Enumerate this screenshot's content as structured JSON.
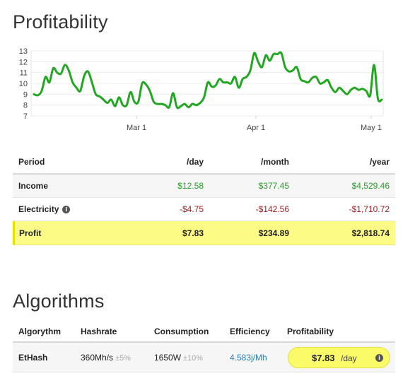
{
  "profitability_title": "Profitability",
  "algorithms_title": "Algorithms",
  "chart_data": {
    "type": "line",
    "x_ticks": [
      "Mar 1",
      "Apr 1",
      "May 1"
    ],
    "y_ticks": [
      7,
      8,
      9,
      10,
      11,
      12,
      13
    ],
    "ylim": [
      7,
      13
    ],
    "color": "#22a722",
    "series": [
      {
        "values": [
          9.0,
          8.9,
          9.3,
          10.6,
          10.1,
          11.4,
          11.0,
          10.9,
          11.7,
          11.2,
          10.1,
          9.6,
          9.3,
          10.7,
          11.1,
          10.1,
          9.0,
          8.8,
          8.5,
          8.2,
          8.5,
          7.9,
          8.7,
          8.0,
          8.0,
          9.2,
          8.3,
          8.3,
          10.0,
          9.9,
          9.3,
          8.3,
          8.1,
          8.1,
          8.0,
          7.8,
          9.1,
          7.8,
          7.9,
          8.1,
          7.8,
          8.1,
          8.0,
          8.2,
          8.7,
          10.1,
          9.7,
          9.8,
          10.4,
          10.1,
          10.1,
          10.0,
          10.6,
          9.6,
          10.4,
          10.6,
          11.2,
          12.8,
          12.0,
          11.5,
          12.6,
          12.1,
          12.7,
          12.7,
          12.8,
          11.5,
          11.1,
          11.2,
          11.5,
          10.4,
          10.2,
          10.1,
          10.5,
          10.6,
          10.0,
          10.1,
          10.3,
          9.6,
          9.2,
          9.6,
          9.3,
          9.0,
          9.4,
          9.6,
          9.4,
          9.5,
          9.3,
          8.9,
          11.7,
          8.6,
          8.5
        ]
      }
    ]
  },
  "profit_table": {
    "headers": {
      "period": "Period",
      "day": "/day",
      "month": "/month",
      "year": "/year"
    },
    "income": {
      "label": "Income",
      "day": "$12.58",
      "month": "$377.45",
      "year": "$4,529.46"
    },
    "electricity": {
      "label": "Electricity",
      "day": "-$4.75",
      "month": "-$142.56",
      "year": "-$1,710.72"
    },
    "profit": {
      "label": "Profit",
      "day": "$7.83",
      "month": "$234.89",
      "year": "$2,818.74"
    }
  },
  "algo_table": {
    "headers": {
      "algorythm": "Algorythm",
      "hashrate": "Hashrate",
      "consumption": "Consumption",
      "efficiency": "Efficiency",
      "profitability": "Profitability"
    },
    "row": {
      "name": "EtHash",
      "hashrate": "360Mh/s",
      "hashrate_tol": "±5%",
      "consumption": "1650W",
      "consumption_tol": "±10%",
      "efficiency": "4.583j/Mh",
      "profit_value": "$7.83",
      "profit_unit": "/day"
    }
  },
  "info_icon_glyph": "i",
  "colors": {
    "accent_green": "#22a722",
    "highlight_yellow": "#fbfb86",
    "negative_red": "#a31d1d",
    "link_blue": "#2a7fc1"
  }
}
